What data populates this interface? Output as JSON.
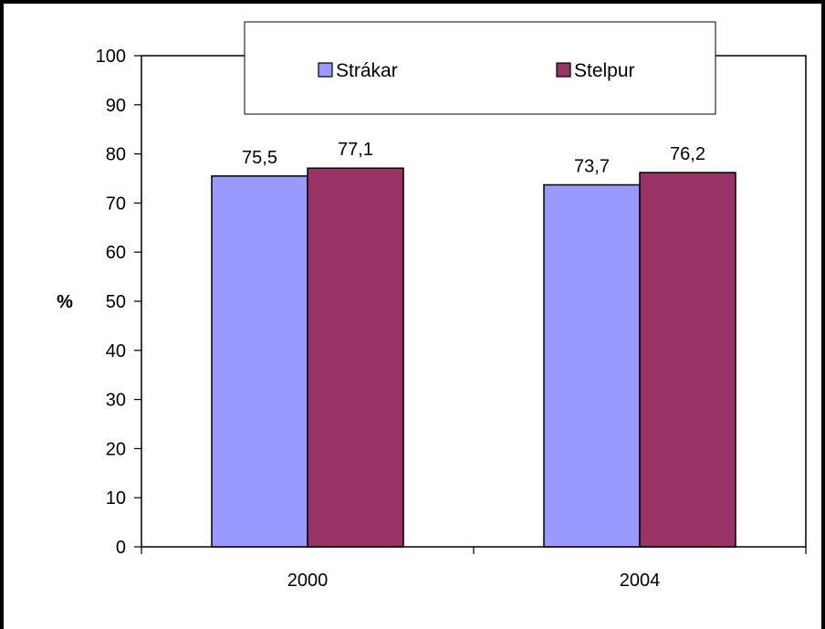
{
  "chart_data": {
    "type": "bar",
    "categories": [
      "2000",
      "2004"
    ],
    "series": [
      {
        "name": "Strákar",
        "values": [
          75.5,
          73.7
        ],
        "labels": [
          "75,5",
          "73,7"
        ],
        "color": "#9999FF"
      },
      {
        "name": "Stelpur",
        "values": [
          77.1,
          76.2
        ],
        "labels": [
          "77,1",
          "76,2"
        ],
        "color": "#993366"
      }
    ],
    "ylabel": "%",
    "xlabel": "",
    "title": "",
    "ylim": [
      0,
      100
    ],
    "yticks": [
      "0",
      "10",
      "20",
      "30",
      "40",
      "50",
      "60",
      "70",
      "80",
      "90",
      "100"
    ],
    "grid": false,
    "legend_position": "top"
  }
}
